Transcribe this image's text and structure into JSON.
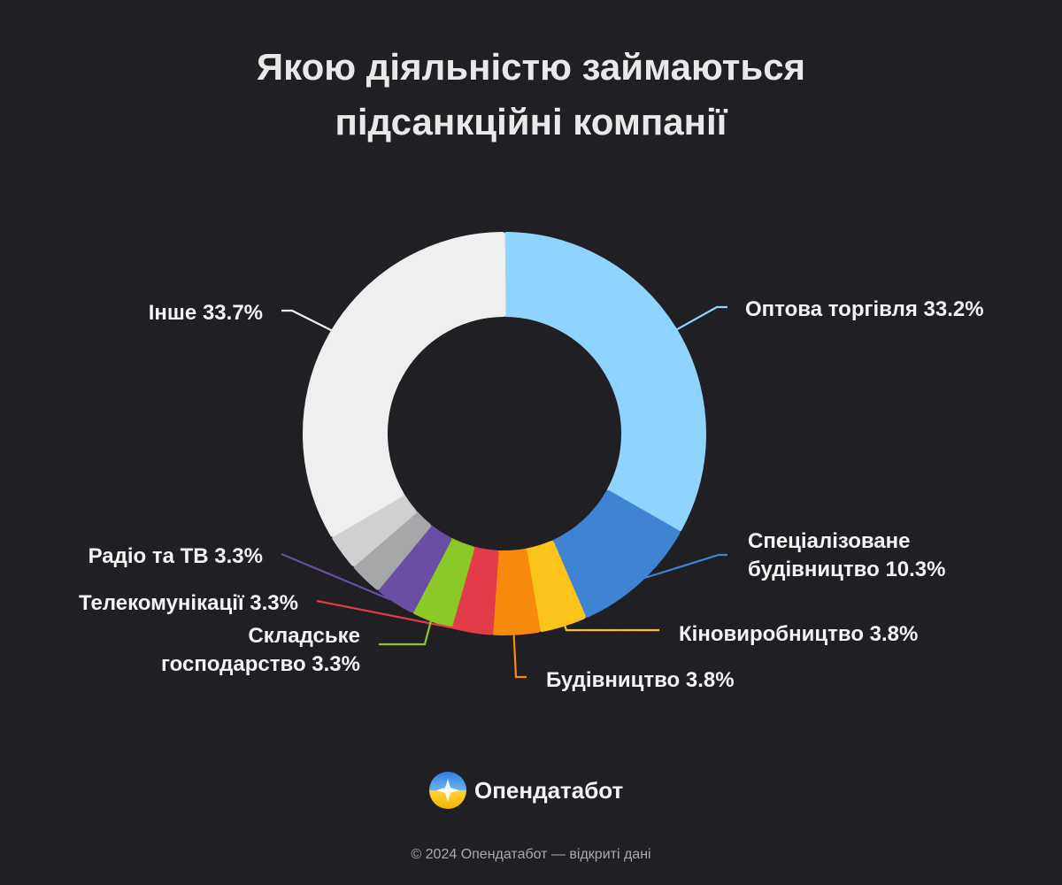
{
  "chart_data": {
    "type": "pie",
    "title": "Якою діяльністю займаються підсанкційні компанії",
    "title_lines": [
      "Якою діяльністю займаються",
      "підсанкційні компанії"
    ],
    "slices": [
      {
        "name": "Оптова торгівля",
        "value": 33.2,
        "value_label": "33.2%",
        "color": "#8fd3ff"
      },
      {
        "name": "Спеціалізоване будівництво",
        "value": 10.3,
        "value_label": "10.3%",
        "color": "#3f84d2"
      },
      {
        "name": "Кіновиробництво",
        "value": 3.8,
        "value_label": "3.8%",
        "color": "#fbc41b"
      },
      {
        "name": "Будівництво",
        "value": 3.8,
        "value_label": "3.8%",
        "color": "#f7890d"
      },
      {
        "name": "Телекомунікації",
        "value": 3.3,
        "value_label": "3.3%",
        "color": "#e23b4a"
      },
      {
        "name": "Складське господарство",
        "value": 3.3,
        "value_label": "3.3%",
        "color": "#8ac926"
      },
      {
        "name": "Радіо та ТВ",
        "value": 3.3,
        "value_label": "3.3%",
        "color": "#6a4ea3"
      },
      {
        "name": "",
        "value": 2.7,
        "value_label": "",
        "color": "#a6a7a8"
      },
      {
        "name": "",
        "value": 2.9,
        "value_label": "",
        "color": "#cfd0d1"
      },
      {
        "name": "Інше",
        "value": 33.7,
        "value_label": "33.7%",
        "color": "#efefef"
      }
    ],
    "labels": [
      {
        "lines": [
          "Оптова торгівля 33.2%"
        ]
      },
      {
        "lines": [
          "Спеціалізоване",
          "будівництво 10.3%"
        ]
      },
      {
        "lines": [
          "Кіновиробництво 3.8%"
        ]
      },
      {
        "lines": [
          "Будівництво 3.8%"
        ]
      },
      {
        "lines": [
          "Телекомунікації 3.3%"
        ]
      },
      {
        "lines": [
          "Складське",
          "господарство 3.3%"
        ]
      },
      {
        "lines": [
          "Радіо та ТВ 3.3%"
        ]
      },
      null,
      null,
      {
        "lines": [
          "Інше 33.7%"
        ]
      }
    ],
    "donut": true
  },
  "brand": {
    "name": "Опендатабот",
    "logo_icon": "opendatabot-logo-icon"
  },
  "footer": {
    "text": "© 2024 Опендатабот — відкриті дані"
  }
}
